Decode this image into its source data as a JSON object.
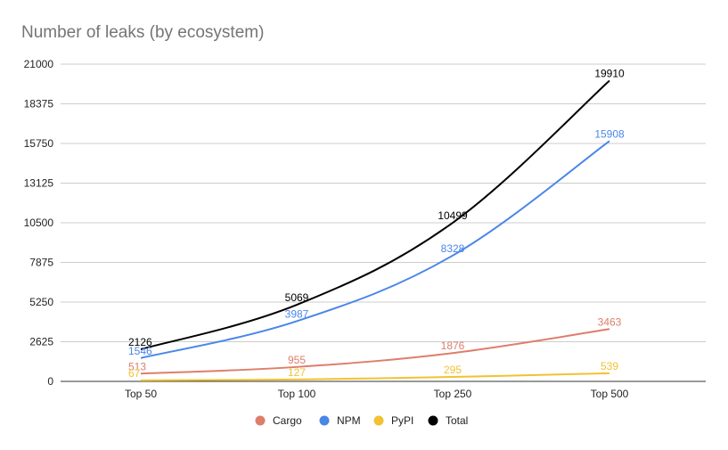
{
  "chart_data": {
    "type": "line",
    "title": "Number of leaks (by ecosystem)",
    "xlabel": "",
    "ylabel": "",
    "categories": [
      "Top 50",
      "Top 100",
      "Top 250",
      "Top 500"
    ],
    "ylim": [
      0,
      21000
    ],
    "yticks": [
      0,
      2625,
      5250,
      7875,
      10500,
      13125,
      15750,
      18375,
      21000
    ],
    "grid": true,
    "legend_position": "bottom",
    "series": [
      {
        "name": "Cargo",
        "color": "#dd7e6b",
        "values": [
          513,
          955,
          1876,
          3463
        ]
      },
      {
        "name": "NPM",
        "color": "#4a86e8",
        "values": [
          1546,
          3987,
          8328,
          15908
        ]
      },
      {
        "name": "PyPI",
        "color": "#f1c232",
        "values": [
          67,
          127,
          295,
          539
        ]
      },
      {
        "name": "Total",
        "color": "#000000",
        "values": [
          2126,
          5069,
          10499,
          19910
        ]
      }
    ]
  }
}
